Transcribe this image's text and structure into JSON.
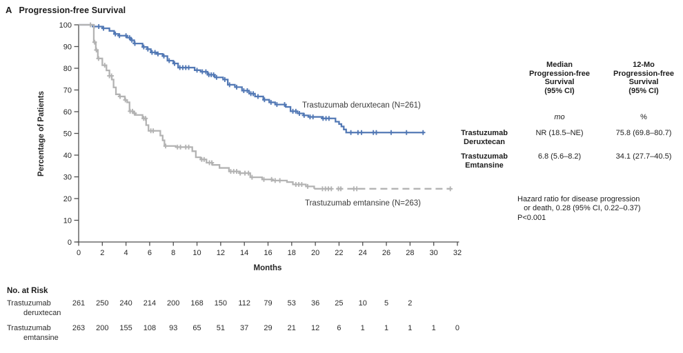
{
  "figure": {
    "panel_letter": "A",
    "title": "Progression-free Survival"
  },
  "chart_data": {
    "type": "line",
    "subtype": "kaplan-meier-step",
    "title": "Progression-free Survival",
    "xlabel": "Months",
    "ylabel": "Percentage of Patients",
    "xlim": [
      0,
      32
    ],
    "ylim": [
      0,
      100
    ],
    "grid": false,
    "x_ticks": [
      0,
      2,
      4,
      6,
      8,
      10,
      12,
      14,
      16,
      18,
      20,
      22,
      24,
      26,
      28,
      30,
      32
    ],
    "y_ticks": [
      0,
      10,
      20,
      30,
      40,
      50,
      60,
      70,
      80,
      90,
      100
    ],
    "axis_color": "#4d4d4d",
    "series": [
      {
        "name": "trastuzumab-deruxtecan",
        "label": "Trastuzumab deruxtecan (N=261)",
        "n": 261,
        "color": "#5379b5",
        "line_style": "solid",
        "steps": [
          [
            0,
            100
          ],
          [
            1.2,
            99.2
          ],
          [
            2.0,
            98.4
          ],
          [
            2.6,
            97.2
          ],
          [
            3.0,
            95.8
          ],
          [
            3.4,
            95.0
          ],
          [
            4.1,
            94.1
          ],
          [
            4.4,
            92.9
          ],
          [
            4.7,
            91.4
          ],
          [
            5.4,
            89.8
          ],
          [
            5.8,
            88.8
          ],
          [
            6.1,
            87.3
          ],
          [
            6.6,
            86.6
          ],
          [
            7.1,
            85.6
          ],
          [
            7.5,
            83.5
          ],
          [
            8.0,
            82.2
          ],
          [
            8.4,
            80.3
          ],
          [
            9.8,
            79.1
          ],
          [
            10.3,
            78.4
          ],
          [
            10.9,
            77.0
          ],
          [
            11.5,
            75.8
          ],
          [
            12.2,
            74.8
          ],
          [
            12.6,
            72.4
          ],
          [
            13.2,
            71.3
          ],
          [
            13.8,
            69.7
          ],
          [
            14.4,
            68.3
          ],
          [
            14.9,
            67.0
          ],
          [
            15.6,
            65.5
          ],
          [
            16.1,
            64.3
          ],
          [
            16.6,
            63.3
          ],
          [
            17.5,
            62.2
          ],
          [
            17.9,
            60.2
          ],
          [
            18.5,
            59.2
          ],
          [
            19.0,
            58.3
          ],
          [
            19.4,
            57.6
          ],
          [
            20.6,
            56.9
          ],
          [
            21.7,
            55.4
          ],
          [
            22.0,
            54.3
          ],
          [
            22.2,
            53.2
          ],
          [
            22.4,
            51.8
          ],
          [
            22.6,
            50.4
          ],
          [
            29.2,
            50.4
          ]
        ],
        "censors": [
          1.3,
          1.7,
          2.1,
          3.1,
          3.45,
          4.0,
          4.3,
          4.5,
          4.75,
          5.5,
          5.85,
          6.2,
          6.45,
          6.7,
          7.2,
          7.65,
          8.1,
          8.55,
          8.8,
          9.05,
          9.3,
          10.0,
          10.45,
          10.75,
          11.0,
          11.2,
          11.4,
          11.65,
          12.35,
          12.75,
          13.35,
          13.95,
          14.25,
          14.55,
          14.75,
          15.15,
          15.7,
          16.25,
          16.75,
          17.4,
          18.1,
          18.35,
          18.65,
          19.05,
          19.55,
          19.8,
          20.65,
          20.9,
          21.15,
          23.0,
          23.6,
          23.9,
          24.9,
          25.15,
          26.4,
          27.7,
          29.1
        ]
      },
      {
        "name": "trastuzumab-emtansine",
        "label": "Trastuzumab emtansine (N=263)",
        "n": 263,
        "color": "#b3b3b3",
        "line_style": "solid-then-dashed",
        "steps": [
          [
            0,
            100
          ],
          [
            1.28,
            92.0
          ],
          [
            1.45,
            88.4
          ],
          [
            1.62,
            84.5
          ],
          [
            2.0,
            81.4
          ],
          [
            2.35,
            79.0
          ],
          [
            2.6,
            76.5
          ],
          [
            2.8,
            74.8
          ],
          [
            2.95,
            71.2
          ],
          [
            3.15,
            68.0
          ],
          [
            3.45,
            67.0
          ],
          [
            3.9,
            65.4
          ],
          [
            4.1,
            64.3
          ],
          [
            4.3,
            60.2
          ],
          [
            4.6,
            59.3
          ],
          [
            4.8,
            58.5
          ],
          [
            5.4,
            56.9
          ],
          [
            5.7,
            53.8
          ],
          [
            5.9,
            51.2
          ],
          [
            6.9,
            49.0
          ],
          [
            7.1,
            46.8
          ],
          [
            7.25,
            44.2
          ],
          [
            8.2,
            43.7
          ],
          [
            9.6,
            41.8
          ],
          [
            9.9,
            39.0
          ],
          [
            10.3,
            38.0
          ],
          [
            10.8,
            36.5
          ],
          [
            11.3,
            35.5
          ],
          [
            11.9,
            34.1
          ],
          [
            12.7,
            32.5
          ],
          [
            13.6,
            31.7
          ],
          [
            14.5,
            29.8
          ],
          [
            15.5,
            28.8
          ],
          [
            16.4,
            28.3
          ],
          [
            17.6,
            27.6
          ],
          [
            18.1,
            26.5
          ],
          [
            19.2,
            25.6
          ],
          [
            19.9,
            24.5
          ]
        ],
        "dashed_tail": [
          [
            19.9,
            24.5
          ],
          [
            31.4,
            24.5
          ]
        ],
        "censors": [
          1.0,
          1.35,
          1.5,
          1.68,
          2.2,
          2.6,
          2.78,
          3.5,
          3.95,
          4.35,
          4.55,
          4.72,
          5.5,
          5.65,
          6.1,
          6.3,
          7.35,
          8.35,
          8.6,
          9.05,
          9.3,
          10.4,
          10.6,
          11.05,
          11.25,
          12.85,
          13.1,
          13.35,
          13.65,
          14.05,
          14.35,
          14.65,
          15.65,
          16.3,
          16.6,
          17.0,
          18.35,
          18.6,
          18.85,
          19.35,
          20.6,
          20.85,
          21.1,
          21.35,
          21.95,
          22.15,
          23.25,
          23.5,
          31.4
        ]
      }
    ],
    "legend_position": "labels-on-plot"
  },
  "stats_table": {
    "col_headers": [
      "Median\nProgression-free\nSurvival\n(95% CI)",
      "12-Mo\nProgression-free\nSurvival\n(95% CI)"
    ],
    "units": [
      "mo",
      "%"
    ],
    "rows": [
      {
        "label": "Trastuzumab\nDeruxtecan",
        "median": "NR (18.5–NE)",
        "twelve_mo": "75.8 (69.8–80.7)"
      },
      {
        "label": "Trastuzumab\nEmtansine",
        "median": "6.8 (5.6–8.2)",
        "twelve_mo": "34.1 (27.7–40.5)"
      }
    ]
  },
  "hazard_note": "Hazard ratio for disease progression\n   or death, 0.28 (95% CI, 0.22–0.37)\nP<0.001",
  "risk_table": {
    "title": "No. at Risk",
    "month_interval": 2,
    "rows": [
      {
        "label_line1": "Trastuzumab",
        "label_line2": "deruxtecan",
        "values": [
          261,
          250,
          240,
          214,
          200,
          168,
          150,
          112,
          79,
          53,
          36,
          25,
          10,
          5,
          2
        ]
      },
      {
        "label_line1": "Trastuzumab",
        "label_line2": "emtansine",
        "values": [
          263,
          200,
          155,
          108,
          93,
          65,
          51,
          37,
          29,
          21,
          12,
          6,
          1,
          1,
          1,
          1,
          0
        ]
      }
    ]
  }
}
